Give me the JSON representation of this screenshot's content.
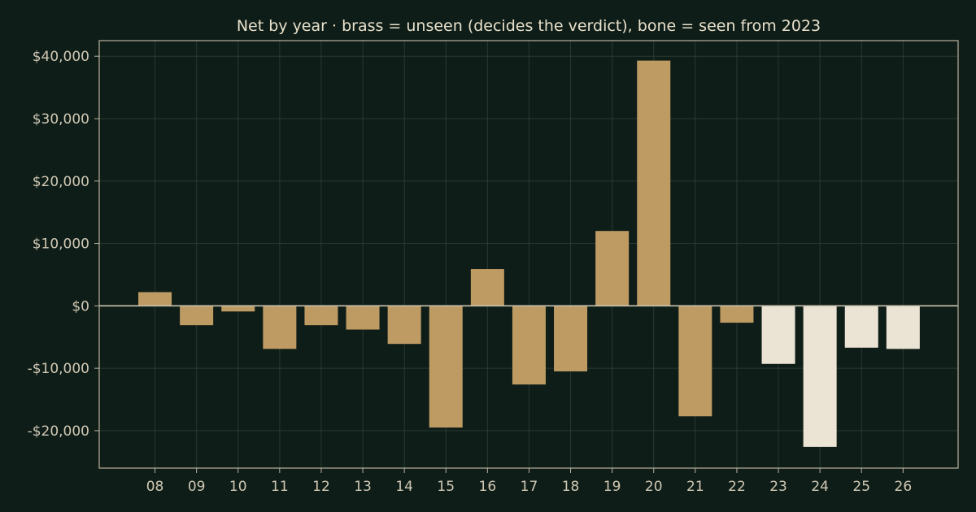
{
  "chart_data": {
    "type": "bar",
    "title": "Net by year  ·  brass = unseen (decides the verdict), bone = seen from 2023",
    "xlabel": "",
    "ylabel": "",
    "categories": [
      "08",
      "09",
      "10",
      "11",
      "12",
      "13",
      "14",
      "15",
      "16",
      "17",
      "18",
      "19",
      "20",
      "21",
      "22",
      "23",
      "24",
      "25",
      "26"
    ],
    "values": [
      2200,
      -3100,
      -900,
      -6900,
      -3100,
      -3800,
      -6100,
      -19500,
      5900,
      -12600,
      -10500,
      12000,
      39300,
      -17700,
      -2700,
      -9300,
      -22600,
      -6700,
      -6900
    ],
    "groups": [
      "unseen",
      "unseen",
      "unseen",
      "unseen",
      "unseen",
      "unseen",
      "unseen",
      "unseen",
      "unseen",
      "unseen",
      "unseen",
      "unseen",
      "unseen",
      "unseen",
      "unseen",
      "seen",
      "seen",
      "seen",
      "seen"
    ],
    "ylim": [
      -26000,
      42500
    ],
    "yticks": [
      40000,
      30000,
      20000,
      10000,
      0,
      -10000,
      -20000
    ],
    "ytick_labels": [
      "$40,000",
      "$30,000",
      "$20,000",
      "$10,000",
      "$0",
      "-$10,000",
      "-$20,000"
    ],
    "grid": true,
    "colors": {
      "unseen": "#be9b63",
      "seen": "#ebe4d4",
      "background": "#0f1d18"
    }
  }
}
